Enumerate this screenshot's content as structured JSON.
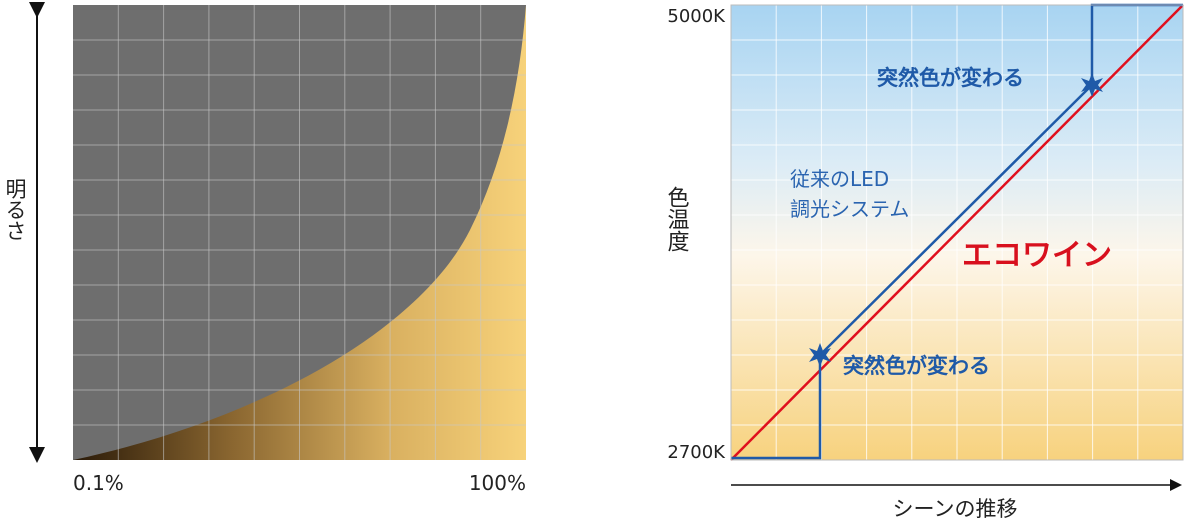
{
  "left_panel": {
    "y_label": "明るさ",
    "x_start": "0.1%",
    "x_end": "100%"
  },
  "right_panel": {
    "y_label": "色温度",
    "y_top": "5000K",
    "y_bottom": "2700K",
    "x_label": "シーンの推移",
    "legacy_label": [
      "従来のLED",
      "調光システム"
    ],
    "ecowin_label": "エコワイン",
    "notes": [
      "突然色が変わる",
      "突然色が変わる"
    ]
  }
}
